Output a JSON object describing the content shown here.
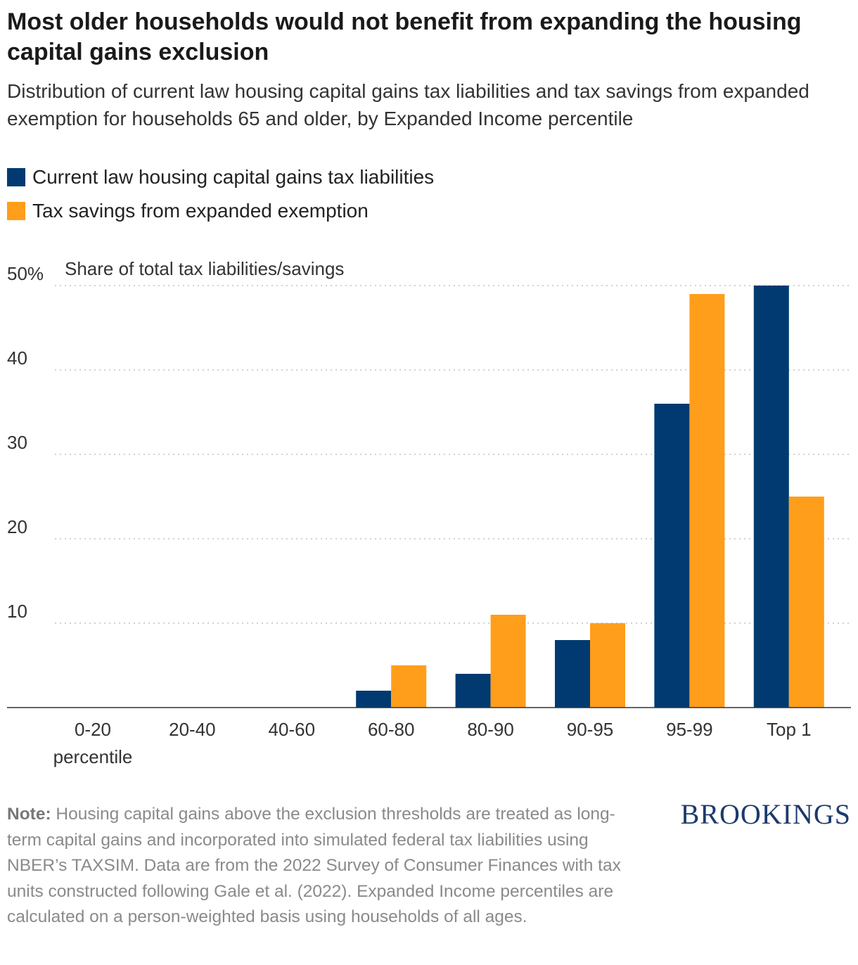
{
  "title": "Most older households would not benefit from expanding the housing capital gains exclusion",
  "subtitle": "Distribution of current law housing capital gains tax liabilities and tax savings from expanded exemption for households 65 and older, by Expanded Income percentile",
  "colors": {
    "series_1": "#003a70",
    "series_2": "#ff9e1b"
  },
  "chart_data": {
    "type": "bar",
    "categories": [
      "0-20\npercentile",
      "20-40",
      "40-60",
      "60-80",
      "80-90",
      "90-95",
      "95-99",
      "Top 1"
    ],
    "series": [
      {
        "name": "Current law housing capital gains tax liabilities",
        "values": [
          0,
          0,
          0,
          2,
          4,
          8,
          36,
          50
        ]
      },
      {
        "name": "Tax savings from expanded exemption",
        "values": [
          0,
          0,
          0,
          5,
          11,
          10,
          49,
          25
        ]
      }
    ],
    "ylabel": "Share of total tax liabilities/savings",
    "ylim": [
      0,
      50
    ],
    "yticks": [
      10,
      20,
      30,
      40,
      50
    ],
    "ytick_labels": [
      "10",
      "20",
      "30",
      "40",
      "50%"
    ],
    "grid": true,
    "legend": "top-left"
  },
  "note": {
    "label": "Note:",
    "text": " Housing capital gains above the exclusion thresholds are treated as long-term capital gains and incorporated into simulated federal tax liabilities using NBER’s TAXSIM. Data are from the 2022 Survey of Consumer Finances with tax units constructed following Gale et al. (2022). Expanded Income percentiles are calculated on a person-weighted basis using households of all ages."
  },
  "brand": "BROOKINGS"
}
